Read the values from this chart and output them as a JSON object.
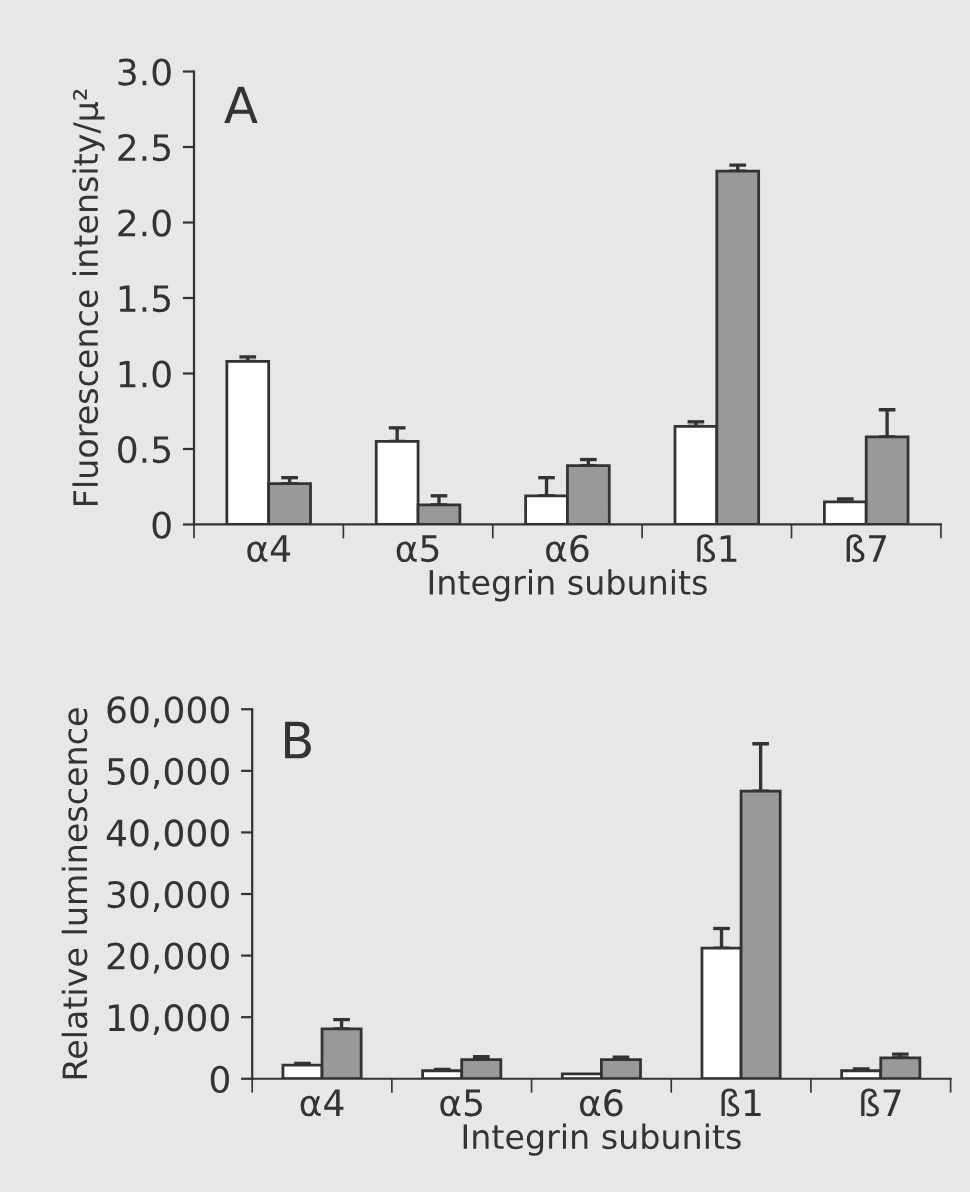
{
  "chart_data": [
    {
      "type": "bar",
      "title": "A",
      "xlabel": "Integrin subunits",
      "ylabel": "Fluorescence intensity/μ²",
      "categories": [
        "α4",
        "α5",
        "α6",
        "ß1",
        "ß7"
      ],
      "series": [
        {
          "color": "#ffffff",
          "values": [
            1.08,
            0.55,
            0.19,
            0.65,
            0.15
          ],
          "errors": [
            [
              1.08,
              1.11
            ],
            [
              0.55,
              0.64
            ],
            [
              0.19,
              0.31
            ],
            [
              0.65,
              0.68
            ],
            [
              0.15,
              0.17
            ]
          ]
        },
        {
          "color": "#999999",
          "values": [
            0.27,
            0.13,
            0.39,
            2.34,
            0.58
          ],
          "errors": [
            [
              0.27,
              0.31
            ],
            [
              0.13,
              0.19
            ],
            [
              0.39,
              0.43
            ],
            [
              2.34,
              2.38
            ],
            [
              0.58,
              0.76
            ]
          ]
        }
      ],
      "ylim": [
        0,
        3
      ],
      "yticks": [
        0,
        0.5,
        {
          "value": 1,
          "label": "1.0"
        },
        1.5,
        {
          "value": 2,
          "label": "2.0"
        },
        2.5,
        {
          "value": 3,
          "label": "3.0"
        }
      ],
      "grid": false,
      "legend": false
    },
    {
      "type": "bar",
      "title": "B",
      "xlabel": "Integrin subunits",
      "ylabel": "Relative luminescence",
      "categories": [
        "α4",
        "α5",
        "α6",
        "ß1",
        "ß7"
      ],
      "series": [
        {
          "color": "#ffffff",
          "values": [
            2200,
            1300,
            800,
            21200,
            1300
          ],
          "errors": [
            [
              2200,
              2500
            ],
            [
              1300,
              1500
            ],
            null,
            [
              21200,
              24400
            ],
            [
              1300,
              1600
            ]
          ]
        },
        {
          "color": "#999999",
          "values": [
            8100,
            3100,
            3100,
            46700,
            3400
          ],
          "errors": [
            [
              8100,
              9600
            ],
            [
              3100,
              3600
            ],
            [
              3100,
              3500
            ],
            [
              46700,
              54400
            ],
            [
              3400,
              4000
            ]
          ]
        }
      ],
      "ylim": [
        0,
        60000
      ],
      "yticks": [
        0,
        {
          "value": 10000,
          "label": "10,000"
        },
        {
          "value": 20000,
          "label": "20,000"
        },
        {
          "value": 30000,
          "label": "30,000"
        },
        {
          "value": 40000,
          "label": "40,000"
        },
        {
          "value": 50000,
          "label": "50,000"
        },
        {
          "value": 60000,
          "label": "60,000"
        }
      ],
      "grid": false,
      "legend": false
    }
  ]
}
